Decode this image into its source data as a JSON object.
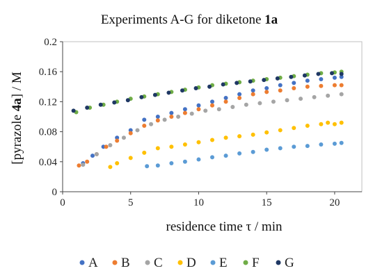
{
  "chart_data": {
    "type": "scatter",
    "title": "Experiments A-G for diketone ",
    "title_bold": "1a",
    "xlabel": "residence time τ / min",
    "ylabel_prefix": "[pyrazole ",
    "ylabel_bold": "4a",
    "ylabel_suffix": "] / M",
    "xlim": [
      0,
      22
    ],
    "ylim": [
      0,
      0.2
    ],
    "x_ticks": [
      "0",
      "5",
      "10",
      "15",
      "20"
    ],
    "y_ticks": [
      "0",
      "0.04",
      "0.08",
      "0.12",
      "0.16",
      "0.2"
    ],
    "legend_position": "bottom",
    "grid": false,
    "series": [
      {
        "name": "A",
        "color": "#4472C4",
        "x": [
          1.5,
          2.2,
          3.0,
          4.0,
          5.0,
          6.0,
          7.0,
          8.0,
          9.0,
          10.0,
          11.0,
          12.0,
          13.0,
          14.0,
          15.0,
          16.0,
          17.0,
          18.0,
          19.0,
          20.0,
          20.5
        ],
        "y": [
          0.038,
          0.048,
          0.06,
          0.072,
          0.082,
          0.096,
          0.1,
          0.105,
          0.11,
          0.115,
          0.12,
          0.125,
          0.13,
          0.135,
          0.138,
          0.142,
          0.145,
          0.148,
          0.15,
          0.152,
          0.153
        ]
      },
      {
        "name": "B",
        "color": "#ED7D31",
        "x": [
          1.2,
          1.8,
          2.5,
          3.2,
          4.0,
          5.0,
          6.0,
          7.0,
          8.0,
          9.0,
          10.0,
          11.0,
          12.0,
          13.0,
          14.0,
          15.0,
          16.0,
          17.0,
          18.0,
          19.0,
          20.0,
          20.5
        ],
        "y": [
          0.035,
          0.04,
          0.05,
          0.06,
          0.068,
          0.078,
          0.088,
          0.095,
          0.1,
          0.105,
          0.11,
          0.115,
          0.12,
          0.125,
          0.13,
          0.133,
          0.135,
          0.138,
          0.14,
          0.141,
          0.142,
          0.142
        ]
      },
      {
        "name": "C",
        "color": "#A5A5A5",
        "x": [
          1.5,
          2.5,
          3.5,
          4.5,
          5.5,
          6.5,
          7.5,
          8.5,
          9.5,
          10.5,
          11.5,
          12.5,
          13.5,
          14.5,
          15.5,
          16.5,
          17.5,
          18.5,
          19.5,
          20.5
        ],
        "y": [
          0.036,
          0.05,
          0.062,
          0.072,
          0.082,
          0.09,
          0.096,
          0.1,
          0.104,
          0.108,
          0.11,
          0.113,
          0.116,
          0.118,
          0.12,
          0.122,
          0.124,
          0.126,
          0.128,
          0.13
        ]
      },
      {
        "name": "D",
        "color": "#FFC000",
        "x": [
          3.5,
          4.0,
          5.0,
          6.0,
          7.0,
          8.0,
          9.0,
          10.0,
          11.0,
          12.0,
          13.0,
          14.0,
          15.0,
          16.0,
          17.0,
          18.0,
          19.0,
          19.5,
          20.0,
          20.5
        ],
        "y": [
          0.033,
          0.038,
          0.045,
          0.052,
          0.058,
          0.06,
          0.063,
          0.066,
          0.069,
          0.072,
          0.074,
          0.076,
          0.079,
          0.082,
          0.085,
          0.088,
          0.09,
          0.092,
          0.09,
          0.092
        ]
      },
      {
        "name": "E",
        "color": "#5B9BD5",
        "x": [
          6.2,
          7.0,
          8.0,
          9.0,
          10.0,
          11.0,
          12.0,
          13.0,
          14.0,
          15.0,
          16.0,
          17.0,
          18.0,
          19.0,
          20.0,
          20.5
        ],
        "y": [
          0.034,
          0.035,
          0.038,
          0.04,
          0.043,
          0.046,
          0.048,
          0.051,
          0.053,
          0.056,
          0.058,
          0.06,
          0.061,
          0.063,
          0.064,
          0.065
        ]
      },
      {
        "name": "F",
        "color": "#70AD47",
        "x": [
          1.0,
          2.0,
          3.0,
          4.0,
          5.0,
          6.0,
          7.0,
          8.0,
          9.0,
          10.0,
          11.0,
          12.0,
          13.0,
          14.0,
          15.0,
          16.0,
          17.0,
          18.0,
          19.0,
          20.0,
          20.5
        ],
        "y": [
          0.106,
          0.112,
          0.116,
          0.12,
          0.124,
          0.127,
          0.13,
          0.133,
          0.136,
          0.139,
          0.142,
          0.144,
          0.146,
          0.148,
          0.15,
          0.152,
          0.154,
          0.156,
          0.158,
          0.159,
          0.16
        ]
      },
      {
        "name": "G",
        "color": "#1F3864",
        "x": [
          0.8,
          1.8,
          2.8,
          3.8,
          4.8,
          5.8,
          6.8,
          7.8,
          8.8,
          9.8,
          10.8,
          11.8,
          12.8,
          13.8,
          14.8,
          15.8,
          16.8,
          17.8,
          18.8,
          19.8,
          20.5
        ],
        "y": [
          0.108,
          0.112,
          0.116,
          0.119,
          0.122,
          0.126,
          0.129,
          0.132,
          0.135,
          0.138,
          0.14,
          0.143,
          0.145,
          0.147,
          0.149,
          0.151,
          0.153,
          0.155,
          0.157,
          0.158,
          0.157
        ]
      }
    ]
  }
}
